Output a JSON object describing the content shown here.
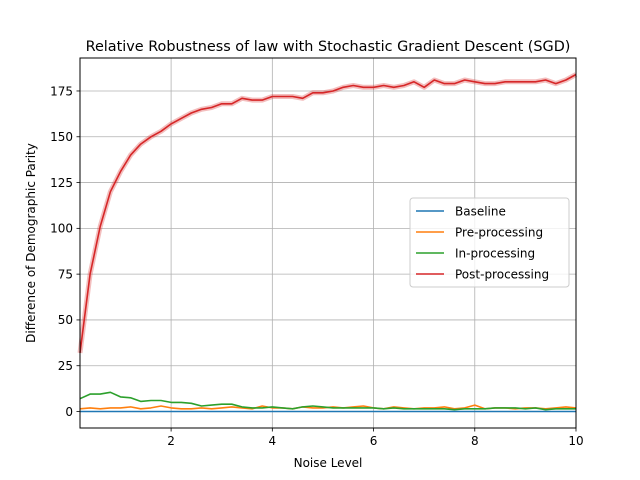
{
  "chart_data": {
    "type": "line",
    "title": "Relative Robustness of law with Stochastic Gradient Descent (SGD)",
    "xlabel": "Noise Level",
    "ylabel": "Difference of Demographic Parity",
    "xlim": [
      0.2,
      10
    ],
    "ylim": [
      -9,
      193
    ],
    "xticks": [
      2,
      4,
      6,
      8,
      10
    ],
    "yticks": [
      0,
      25,
      50,
      75,
      100,
      125,
      150,
      175
    ],
    "grid": true,
    "legend_position": "center-right",
    "x": [
      0.2,
      0.4,
      0.6,
      0.8,
      1.0,
      1.2,
      1.4,
      1.6,
      1.8,
      2.0,
      2.2,
      2.4,
      2.6,
      2.8,
      3.0,
      3.2,
      3.4,
      3.6,
      3.8,
      4.0,
      4.2,
      4.4,
      4.6,
      4.8,
      5.0,
      5.2,
      5.4,
      5.6,
      5.8,
      6.0,
      6.2,
      6.4,
      6.6,
      6.8,
      7.0,
      7.2,
      7.4,
      7.6,
      7.8,
      8.0,
      8.2,
      8.4,
      8.6,
      8.8,
      9.0,
      9.2,
      9.4,
      9.6,
      9.8,
      10.0
    ],
    "series": [
      {
        "name": "Baseline",
        "color": "#1f77b4",
        "values": [
          0,
          0,
          0,
          0,
          0,
          0,
          0,
          0,
          0,
          0,
          0,
          0,
          0,
          0,
          0,
          0,
          0,
          0,
          0,
          0,
          0,
          0,
          0,
          0,
          0,
          0,
          0,
          0,
          0,
          0,
          0,
          0,
          0,
          0,
          0,
          0,
          0,
          0,
          0,
          0,
          0,
          0,
          0,
          0,
          0,
          0,
          0,
          0,
          0,
          0
        ]
      },
      {
        "name": "Pre-processing",
        "color": "#ff7f0e",
        "values": [
          1.5,
          2,
          1.5,
          2,
          2,
          2.5,
          1.5,
          2,
          3,
          2,
          1.5,
          1.5,
          2,
          1.5,
          2,
          2.5,
          2,
          1.5,
          3,
          2,
          2,
          1.5,
          2.5,
          2,
          2,
          2.5,
          2,
          2.5,
          3,
          2,
          1.5,
          2.5,
          2,
          1.5,
          2,
          2,
          2.5,
          1.5,
          2,
          3.5,
          1.5,
          2,
          2,
          1.5,
          2,
          2,
          1.5,
          2,
          2.5,
          2
        ]
      },
      {
        "name": "In-processing",
        "color": "#2ca02c",
        "values": [
          7,
          9.5,
          9.5,
          10.5,
          8,
          7.5,
          5.5,
          6,
          6,
          5,
          5,
          4.5,
          3,
          3.5,
          4,
          4,
          2.5,
          2,
          2,
          2.5,
          2,
          1.5,
          2.5,
          3,
          2.5,
          2,
          2,
          2,
          2,
          2,
          1.5,
          2,
          1.5,
          1.5,
          1.5,
          1.5,
          1.5,
          1,
          1.5,
          1.5,
          1.5,
          2,
          2,
          2,
          1.5,
          2,
          1,
          1.5,
          1.5,
          1.5
        ]
      },
      {
        "name": "Post-processing",
        "color": "#d62728",
        "values": [
          32,
          75,
          101,
          120,
          131,
          140,
          146,
          150,
          153,
          157,
          160,
          163,
          165,
          166,
          168,
          168,
          171,
          170,
          170,
          172,
          172,
          172,
          171,
          174,
          174,
          175,
          177,
          178,
          177,
          177,
          178,
          177,
          178,
          180,
          177,
          181,
          179,
          179,
          181,
          180,
          179,
          179,
          180,
          180,
          180,
          180,
          181,
          179,
          181,
          184
        ]
      }
    ]
  }
}
